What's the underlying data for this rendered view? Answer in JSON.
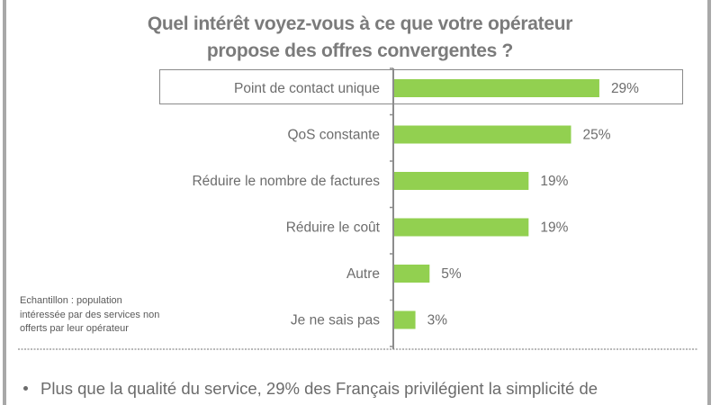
{
  "title_lines": [
    "Quel intérêt voyez-vous à ce que votre opérateur",
    "propose des offres convergentes ?"
  ],
  "note": [
    "Echantillon : population",
    "intéressée par des services non",
    "offerts par leur opérateur"
  ],
  "bullet_text": "Plus que la qualité du service, 29% des Français privilégient la simplicité de",
  "colors": {
    "bar": "#92d050",
    "text": "#6d6d6d",
    "title": "#7b7b7b"
  },
  "chart_data": {
    "type": "bar",
    "orientation": "horizontal",
    "title": "Quel intérêt voyez-vous à ce que votre opérateur propose des offres convergentes ?",
    "categories": [
      "Point de contact unique",
      "QoS constante",
      "Réduire le nombre de factures",
      "Réduire le coût",
      "Autre",
      "Je ne sais pas"
    ],
    "values": [
      29,
      25,
      19,
      19,
      5,
      3
    ],
    "value_labels": [
      "29%",
      "25%",
      "19%",
      "19%",
      "5%",
      "3%"
    ],
    "highlighted_category": "Point de contact unique",
    "xlabel": "",
    "ylabel": "",
    "xlim": [
      0,
      30
    ],
    "grid": false,
    "legend": "none"
  }
}
